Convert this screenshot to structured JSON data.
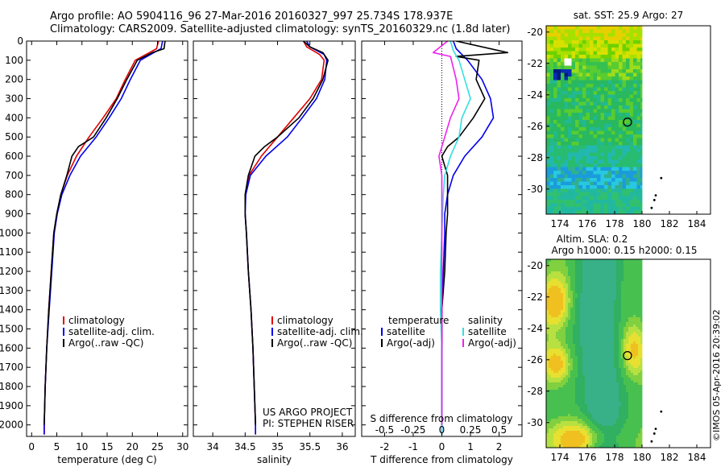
{
  "header": {
    "line1": "Argo profile: AO 5904116_96 27-Mar-2016 20160327_997 25.734S 178.937E",
    "line2": "Climatology: CARS2009. Satellite-adjusted climatology: synTS_20160329.nc (1.8d later)"
  },
  "credit": "©IMOS 05-Apr-2016 20:39:02",
  "colors": {
    "climatology": "#e00000",
    "satellite": "#0000ee",
    "argo": "#000000",
    "sat_salinity": "#33e0e0",
    "argo_salinity": "#ee22ee"
  },
  "chart_data": [
    {
      "type": "line",
      "id": "temperature",
      "xlabel": "temperature (deg C)",
      "xlim": [
        -1,
        31
      ],
      "ylim": [
        2060,
        0
      ],
      "xticks": [
        "0",
        "5",
        "10",
        "15",
        "20",
        "25",
        "30"
      ],
      "yticks": [
        "0",
        "100",
        "200",
        "300",
        "400",
        "500",
        "600",
        "700",
        "800",
        "900",
        "1000",
        "1100",
        "1200",
        "1300",
        "1400",
        "1500",
        "1600",
        "1700",
        "1800",
        "1900",
        "2000"
      ],
      "legend": [
        "climatology",
        "satellite-adj. clim.",
        "Argo(..raw -QC)"
      ],
      "series": [
        {
          "name": "climatology",
          "color": "#e00000",
          "points": [
            [
              25.2,
              0
            ],
            [
              24.8,
              40
            ],
            [
              23.4,
              60
            ],
            [
              20.6,
              100
            ],
            [
              18.6,
              200
            ],
            [
              16.8,
              300
            ],
            [
              14.2,
              400
            ],
            [
              11.4,
              500
            ],
            [
              8.9,
              600
            ],
            [
              7.1,
              700
            ],
            [
              5.8,
              800
            ],
            [
              5.0,
              900
            ],
            [
              4.4,
              1000
            ],
            [
              3.9,
              1200
            ],
            [
              3.4,
              1400
            ],
            [
              3.0,
              1600
            ],
            [
              2.7,
              1800
            ],
            [
              2.5,
              2000
            ],
            [
              2.5,
              2050
            ]
          ]
        },
        {
          "name": "satellite-adj. clim.",
          "color": "#0000ee",
          "points": [
            [
              26.0,
              0
            ],
            [
              25.7,
              40
            ],
            [
              24.3,
              60
            ],
            [
              21.6,
              100
            ],
            [
              19.6,
              200
            ],
            [
              17.8,
              300
            ],
            [
              15.4,
              400
            ],
            [
              12.8,
              500
            ],
            [
              9.7,
              600
            ],
            [
              7.6,
              700
            ],
            [
              6.0,
              800
            ],
            [
              5.1,
              900
            ],
            [
              4.5,
              1000
            ],
            [
              4.0,
              1200
            ],
            [
              3.5,
              1400
            ],
            [
              3.0,
              1600
            ],
            [
              2.7,
              1800
            ],
            [
              2.5,
              2000
            ],
            [
              2.5,
              2050
            ]
          ]
        },
        {
          "name": "Argo(..raw -QC)",
          "color": "#000000",
          "points": [
            [
              26.5,
              0
            ],
            [
              26.3,
              40
            ],
            [
              24.0,
              60
            ],
            [
              21.0,
              100
            ],
            [
              18.9,
              200
            ],
            [
              17.0,
              300
            ],
            [
              14.8,
              400
            ],
            [
              12.3,
              500
            ],
            [
              9.3,
              550
            ],
            [
              8.0,
              600
            ],
            [
              7.0,
              700
            ],
            [
              5.8,
              800
            ],
            [
              5.0,
              900
            ],
            [
              4.4,
              1000
            ],
            [
              3.9,
              1200
            ],
            [
              3.4,
              1400
            ],
            [
              3.0,
              1600
            ],
            [
              2.7,
              1800
            ],
            [
              2.5,
              2000
            ]
          ]
        }
      ]
    },
    {
      "type": "line",
      "id": "salinity",
      "xlabel": "salinity",
      "xlim": [
        33.7,
        36.2
      ],
      "ylim": [
        2060,
        0
      ],
      "xticks": [
        "34",
        "34.5",
        "35",
        "35.5",
        "36"
      ],
      "legend": [
        "climatology",
        "satellite-adj. clim.",
        "Argo(..raw -QC)"
      ],
      "annotations": [
        "US ARGO PROJECT",
        "PI: STEPHEN RISER"
      ],
      "series": [
        {
          "name": "climatology",
          "color": "#e00000",
          "points": [
            [
              35.4,
              0
            ],
            [
              35.45,
              30
            ],
            [
              35.65,
              70
            ],
            [
              35.72,
              100
            ],
            [
              35.68,
              200
            ],
            [
              35.5,
              300
            ],
            [
              35.25,
              400
            ],
            [
              35.0,
              500
            ],
            [
              34.75,
              600
            ],
            [
              34.56,
              700
            ],
            [
              34.5,
              800
            ],
            [
              34.5,
              900
            ],
            [
              34.52,
              1000
            ],
            [
              34.55,
              1200
            ],
            [
              34.59,
              1400
            ],
            [
              34.62,
              1600
            ],
            [
              34.64,
              1800
            ],
            [
              34.66,
              2000
            ],
            [
              34.66,
              2050
            ]
          ]
        },
        {
          "name": "satellite-adj. clim.",
          "color": "#0000ee",
          "points": [
            [
              35.45,
              0
            ],
            [
              35.5,
              30
            ],
            [
              35.72,
              70
            ],
            [
              35.76,
              100
            ],
            [
              35.73,
              200
            ],
            [
              35.6,
              300
            ],
            [
              35.38,
              400
            ],
            [
              35.15,
              500
            ],
            [
              34.82,
              600
            ],
            [
              34.58,
              700
            ],
            [
              34.51,
              800
            ],
            [
              34.5,
              900
            ],
            [
              34.52,
              1000
            ],
            [
              34.55,
              1200
            ],
            [
              34.59,
              1400
            ],
            [
              34.62,
              1600
            ],
            [
              34.64,
              1800
            ],
            [
              34.66,
              2000
            ],
            [
              34.66,
              2050
            ]
          ]
        },
        {
          "name": "Argo(..raw -QC)",
          "color": "#000000",
          "points": [
            [
              35.4,
              0
            ],
            [
              35.5,
              30
            ],
            [
              35.7,
              60
            ],
            [
              35.78,
              100
            ],
            [
              35.7,
              200
            ],
            [
              35.55,
              300
            ],
            [
              35.33,
              400
            ],
            [
              35.0,
              500
            ],
            [
              34.8,
              550
            ],
            [
              34.65,
              600
            ],
            [
              34.55,
              700
            ],
            [
              34.5,
              800
            ],
            [
              34.5,
              900
            ],
            [
              34.52,
              1000
            ],
            [
              34.55,
              1200
            ],
            [
              34.59,
              1400
            ],
            [
              34.62,
              1600
            ],
            [
              34.64,
              1800
            ],
            [
              34.66,
              2000
            ]
          ]
        }
      ]
    },
    {
      "type": "line",
      "id": "difference",
      "xlabel": "T difference from climatology",
      "xlabel_top": "S difference from climatology",
      "xlim": [
        -2.8,
        2.8
      ],
      "ylim": [
        2060,
        0
      ],
      "xticks": [
        "-2",
        "-1",
        "0",
        "1",
        "2"
      ],
      "xticks_top": [
        "-0.5",
        "-0.25",
        "0",
        "0.25",
        "0.5"
      ],
      "legend_left": {
        "title": "temperature",
        "items": [
          "satellite",
          "Argo(-adj)"
        ]
      },
      "legend_right": {
        "title": "salinity",
        "items": [
          "satellite",
          "Argo(-adj)"
        ]
      },
      "series": [
        {
          "name": "temperature satellite",
          "color": "#0000ee",
          "points": [
            [
              0.4,
              0
            ],
            [
              0.5,
              40
            ],
            [
              0.9,
              100
            ],
            [
              1.4,
              200
            ],
            [
              1.7,
              300
            ],
            [
              1.8,
              400
            ],
            [
              1.4,
              500
            ],
            [
              0.8,
              600
            ],
            [
              0.4,
              700
            ],
            [
              0.2,
              800
            ],
            [
              0.1,
              900
            ],
            [
              0.1,
              1000
            ],
            [
              0.05,
              1200
            ],
            [
              0.0,
              1400
            ],
            [
              0.0,
              1600
            ],
            [
              0.0,
              1800
            ],
            [
              0.0,
              2000
            ],
            [
              0.0,
              2050
            ]
          ]
        },
        {
          "name": "temperature Argo(-adj)",
          "color": "#000000",
          "points": [
            [
              0.5,
              0
            ],
            [
              2.3,
              60
            ],
            [
              0.5,
              80
            ],
            [
              1.3,
              100
            ],
            [
              1.2,
              200
            ],
            [
              1.5,
              300
            ],
            [
              1.1,
              400
            ],
            [
              0.6,
              500
            ],
            [
              0.2,
              550
            ],
            [
              0.0,
              600
            ],
            [
              0.2,
              700
            ],
            [
              0.2,
              800
            ],
            [
              0.2,
              900
            ],
            [
              0.15,
              1000
            ],
            [
              0.1,
              1200
            ],
            [
              0.0,
              1400
            ],
            [
              0.0,
              1600
            ],
            [
              0.0,
              1800
            ],
            [
              0.0,
              2000
            ]
          ]
        },
        {
          "name": "salinity satellite",
          "color": "#33e0e0",
          "points": [
            [
              0.3,
              0
            ],
            [
              0.4,
              50
            ],
            [
              0.6,
              100
            ],
            [
              0.8,
              200
            ],
            [
              1.0,
              300
            ],
            [
              0.7,
              400
            ],
            [
              0.6,
              500
            ],
            [
              0.3,
              600
            ],
            [
              0.1,
              700
            ],
            [
              0.05,
              800
            ],
            [
              0.0,
              1000
            ],
            [
              -0.05,
              1200
            ],
            [
              -0.05,
              1400
            ],
            [
              0.0,
              1600
            ],
            [
              0.0,
              1800
            ],
            [
              0.0,
              2000
            ],
            [
              0.0,
              2050
            ]
          ]
        },
        {
          "name": "salinity Argo(-adj)",
          "color": "#ee22ee",
          "points": [
            [
              0.2,
              0
            ],
            [
              -0.3,
              60
            ],
            [
              0.3,
              80
            ],
            [
              0.5,
              200
            ],
            [
              0.6,
              300
            ],
            [
              0.3,
              400
            ],
            [
              0.1,
              500
            ],
            [
              -0.1,
              600
            ],
            [
              0.0,
              700
            ],
            [
              0.0,
              800
            ],
            [
              0.0,
              1000
            ],
            [
              0.0,
              1200
            ],
            [
              0.0,
              1400
            ],
            [
              0.0,
              1600
            ],
            [
              0.0,
              1800
            ],
            [
              0.0,
              2000
            ]
          ]
        }
      ]
    },
    {
      "type": "heatmap",
      "id": "sst-map",
      "title": "sat. SST: 25.9 Argo: 27",
      "xlim": [
        173,
        185
      ],
      "ylim": [
        -31.6,
        -19.6
      ],
      "xticks": [
        "174",
        "176",
        "178",
        "180",
        "182",
        "184"
      ],
      "yticks": [
        "-20",
        "-22",
        "-24",
        "-26",
        "-28",
        "-30"
      ],
      "marker": [
        178.937,
        -25.734
      ]
    },
    {
      "type": "heatmap",
      "id": "sla-map",
      "title": "Altim. SLA: 0.2",
      "subtitle": "Argo h1000: 0.15 h2000: 0.15",
      "xlim": [
        173,
        185
      ],
      "ylim": [
        -31.6,
        -19.6
      ],
      "xticks": [
        "174",
        "176",
        "178",
        "180",
        "182",
        "184"
      ],
      "yticks": [
        "-20",
        "-22",
        "-24",
        "-26",
        "-28",
        "-30"
      ],
      "marker": [
        178.937,
        -25.734
      ]
    }
  ]
}
